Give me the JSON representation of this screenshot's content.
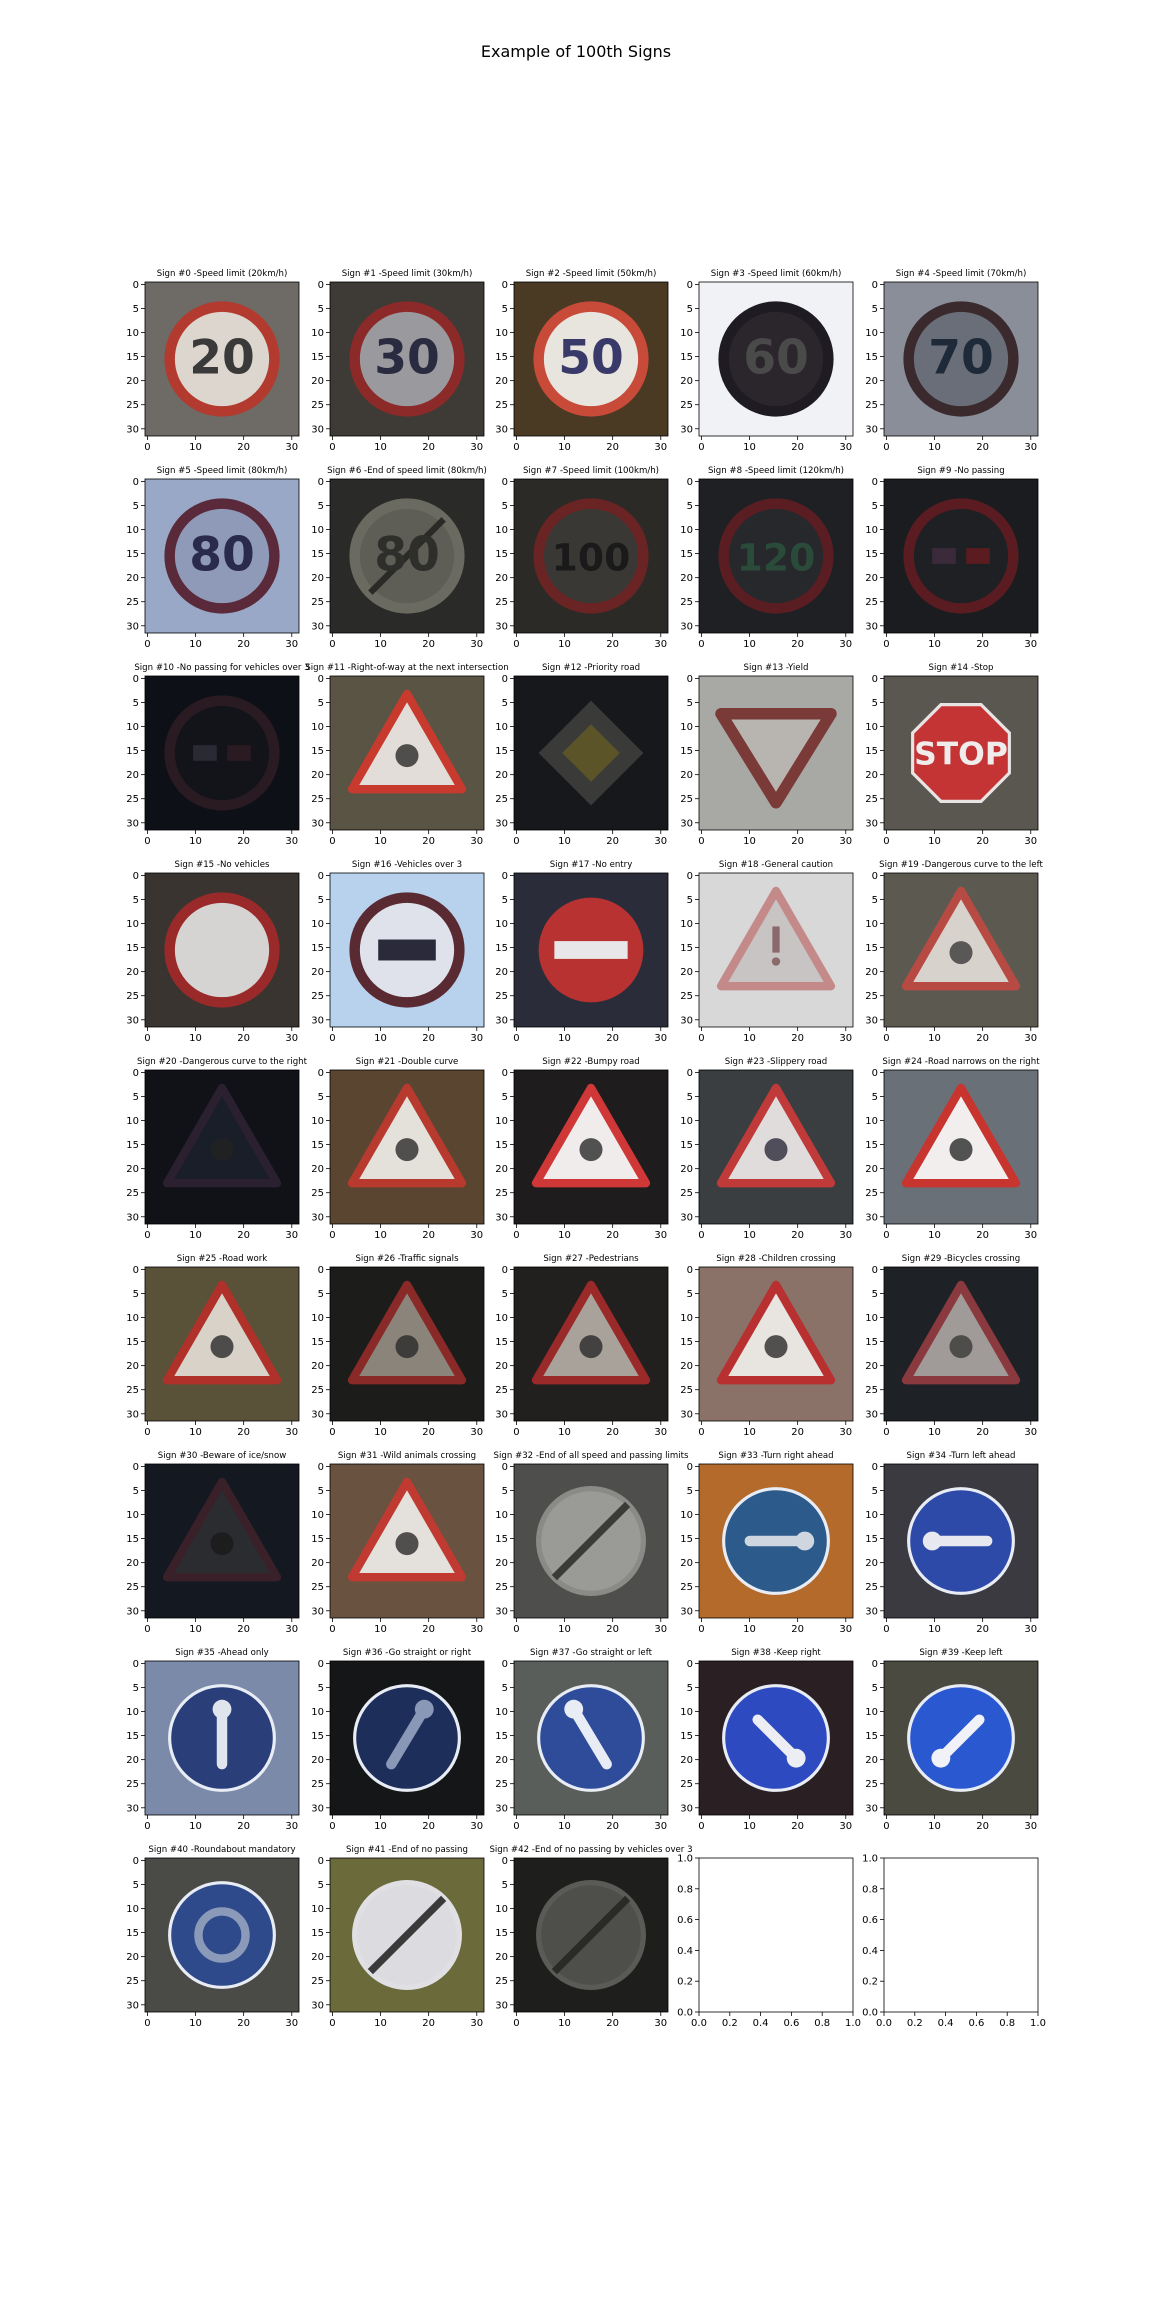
{
  "figure": {
    "suptitle": "Example of 100th Signs"
  },
  "chart_data": {
    "type": "image-grid",
    "grid": {
      "rows": 9,
      "cols": 5
    },
    "axis": {
      "image_xticks": [
        0,
        10,
        20,
        30
      ],
      "image_yticks": [
        0,
        5,
        10,
        15,
        20,
        25,
        30
      ],
      "image_extent": [
        -0.5,
        31.5
      ],
      "empty_ticks": [
        "0.0",
        "0.2",
        "0.4",
        "0.6",
        "0.8",
        "1.0"
      ]
    },
    "panels": [
      {
        "title": "Sign #0 -Speed limit (20km/h)",
        "kind": "speed",
        "label": "20",
        "bg": "#6e6a66",
        "shape": "#b23a2e",
        "inner": "#dcd6cf",
        "symbol": "#3a3a3a",
        "brightness": 1.0
      },
      {
        "title": "Sign #1 -Speed limit (30km/h)",
        "kind": "speed",
        "label": "30",
        "bg": "#3e3a36",
        "shape": "#8c2a2a",
        "inner": "#9a9a9e",
        "symbol": "#2a2a40",
        "brightness": 1.0
      },
      {
        "title": "Sign #2 -Speed limit (50km/h)",
        "kind": "speed",
        "label": "50",
        "bg": "#4a3a24",
        "shape": "#c84a38",
        "inner": "#e8e4de",
        "symbol": "#3a3a6a",
        "brightness": 1.0
      },
      {
        "title": "Sign #3 -Speed limit (60km/h)",
        "kind": "speed",
        "label": "60",
        "bg": "#f0f2f6",
        "shape": "#1e1c22",
        "inner": "#2a262c",
        "symbol": "#4a4a4a",
        "brightness": 1.0
      },
      {
        "title": "Sign #4 -Speed limit (70km/h)",
        "kind": "speed",
        "label": "70",
        "bg": "#8a8e98",
        "shape": "#3a2a2e",
        "inner": "#6a6e78",
        "symbol": "#1e2a3a",
        "brightness": 1.0
      },
      {
        "title": "Sign #5 -Speed limit (80km/h)",
        "kind": "speed",
        "label": "80",
        "bg": "#9aa8c8",
        "shape": "#5a2a3a",
        "inner": "#8e9ab8",
        "symbol": "#2a2a4a",
        "brightness": 1.0
      },
      {
        "title": "Sign #6 -End of speed limit (80km/h)",
        "kind": "endlimit",
        "label": "80",
        "bg": "#2a2a28",
        "shape": "#6a6a60",
        "inner": "#5e5e56",
        "symbol": "#2e2e2a",
        "brightness": 1.0
      },
      {
        "title": "Sign #7 -Speed limit (100km/h)",
        "kind": "speed",
        "label": "100",
        "bg": "#2c2a26",
        "shape": "#6a2424",
        "inner": "#3a3834",
        "symbol": "#1a1a1a",
        "brightness": 1.0
      },
      {
        "title": "Sign #8 -Speed limit (120km/h)",
        "kind": "speed",
        "label": "120",
        "bg": "#1e2024",
        "shape": "#5a1e22",
        "inner": "#26282c",
        "symbol": "#2a4a3a",
        "brightness": 1.0
      },
      {
        "title": "Sign #9 -No passing",
        "kind": "nopass",
        "label": "",
        "bg": "#1a1c20",
        "shape": "#5a1c20",
        "inner": "#1e2024",
        "symbol": "#3a2a3a",
        "brightness": 1.0
      },
      {
        "title": "Sign #10 -No passing for vehicles over 3",
        "kind": "nopass",
        "label": "",
        "bg": "#0e1018",
        "shape": "#2a1a22",
        "inner": "#12141a",
        "symbol": "#2a2a34",
        "brightness": 1.0
      },
      {
        "title": "Sign #11 -Right-of-way at the next intersection",
        "kind": "triangle",
        "label": "",
        "bg": "#5a5444",
        "shape": "#c83a2e",
        "inner": "#e2ddd8",
        "symbol": "#2a2a2a",
        "brightness": 1.0
      },
      {
        "title": "Sign #12 -Priority road",
        "kind": "diamond",
        "label": "",
        "bg": "#16181c",
        "shape": "#3a3a38",
        "inner": "#5a5428",
        "symbol": "#2a2a2a",
        "brightness": 1.0
      },
      {
        "title": "Sign #13 -Yield",
        "kind": "yield",
        "label": "",
        "bg": "#a8a8a4",
        "shape": "#7a3a38",
        "inner": "#b8b4b0",
        "symbol": "#7a3a38",
        "brightness": 1.0
      },
      {
        "title": "Sign #14 -Stop",
        "kind": "stop",
        "label": "STOP",
        "bg": "#5a5650",
        "shape": "#b82a2a",
        "inner": "#c43434",
        "symbol": "#f0ecec",
        "brightness": 1.0
      },
      {
        "title": "Sign #15 -No vehicles",
        "kind": "novehicles",
        "label": "",
        "bg": "#3a3430",
        "shape": "#9a2a2a",
        "inner": "#d6d4d2",
        "symbol": "#d6d4d2",
        "brightness": 1.0
      },
      {
        "title": "Sign #16 -Vehicles over 3",
        "kind": "truck",
        "label": "",
        "bg": "#b8d2ee",
        "shape": "#5a2a32",
        "inner": "#dfe2ea",
        "symbol": "#2a2a3a",
        "brightness": 1.0
      },
      {
        "title": "Sign #17 -No entry",
        "kind": "noentry",
        "label": "",
        "bg": "#2a2c3a",
        "shape": "#b83232",
        "inner": "#b83232",
        "symbol": "#e8e6e8",
        "brightness": 1.0
      },
      {
        "title": "Sign #18 -General caution",
        "kind": "caution",
        "label": "",
        "bg": "#d8d8d8",
        "shape": "#c48a8a",
        "inner": "#c8c4c4",
        "symbol": "#8a6a6a",
        "brightness": 1.0
      },
      {
        "title": "Sign #19 -Dangerous curve to the left",
        "kind": "curve",
        "label": "",
        "bg": "#5c5a50",
        "shape": "#b84a44",
        "inner": "#d8d2cc",
        "symbol": "#3a3a3a",
        "brightness": 1.0
      },
      {
        "title": "Sign #20 -Dangerous curve to the right",
        "kind": "curve",
        "label": "",
        "bg": "#101218",
        "shape": "#2a2030",
        "inner": "#1a1e28",
        "symbol": "#222",
        "brightness": 1.0
      },
      {
        "title": "Sign #21 -Double curve",
        "kind": "doublecurve",
        "label": "",
        "bg": "#5a4630",
        "shape": "#b83a2e",
        "inner": "#e4e0da",
        "symbol": "#2a2a2a",
        "brightness": 1.0
      },
      {
        "title": "Sign #22 -Bumpy road",
        "kind": "bumpy",
        "label": "",
        "bg": "#1e1c1c",
        "shape": "#d03838",
        "inner": "#f0ecec",
        "symbol": "#2a2a2a",
        "brightness": 1.0
      },
      {
        "title": "Sign #23 -Slippery road",
        "kind": "slippery",
        "label": "",
        "bg": "#3a3e40",
        "shape": "#c03a3a",
        "inner": "#e0dcdc",
        "symbol": "#2a2a3a",
        "brightness": 1.0
      },
      {
        "title": "Sign #24 -Road narrows on the right",
        "kind": "narrows",
        "label": "",
        "bg": "#6a7078",
        "shape": "#c8342e",
        "inner": "#f2eeee",
        "symbol": "#2a2a2a",
        "brightness": 1.0
      },
      {
        "title": "Sign #25 -Road work",
        "kind": "roadwork",
        "label": "",
        "bg": "#5a5238",
        "shape": "#b0302a",
        "inner": "#d8d2c8",
        "symbol": "#2a2a2a",
        "brightness": 1.0
      },
      {
        "title": "Sign #26 -Traffic signals",
        "kind": "signals",
        "label": "",
        "bg": "#1c1c1a",
        "shape": "#8a2a28",
        "inner": "#8a847a",
        "symbol": "#2a2a2a",
        "brightness": 1.0
      },
      {
        "title": "Sign #27 -Pedestrians",
        "kind": "pedestrian",
        "label": "",
        "bg": "#22201e",
        "shape": "#9a2a2a",
        "inner": "#a8a29a",
        "symbol": "#2a2a2a",
        "brightness": 1.0
      },
      {
        "title": "Sign #28 -Children crossing",
        "kind": "children",
        "label": "",
        "bg": "#8a7268",
        "shape": "#b83030",
        "inner": "#e8e4e0",
        "symbol": "#2a2a2a",
        "brightness": 1.0
      },
      {
        "title": "Sign #29 -Bicycles crossing",
        "kind": "bicycle",
        "label": "",
        "bg": "#1e2226",
        "shape": "#8a3a3e",
        "inner": "#a09a98",
        "symbol": "#3a3a3a",
        "brightness": 1.0
      },
      {
        "title": "Sign #30 -Beware of ice/snow",
        "kind": "ice",
        "label": "",
        "bg": "#141820",
        "shape": "#3a2028",
        "inner": "#2a2c30",
        "symbol": "#1a1a1a",
        "brightness": 1.0
      },
      {
        "title": "Sign #31 -Wild animals crossing",
        "kind": "animals",
        "label": "",
        "bg": "#6a5240",
        "shape": "#c03a32",
        "inner": "#e4e0dc",
        "symbol": "#2a2a2a",
        "brightness": 1.0
      },
      {
        "title": "Sign #32 -End of all speed and passing limits",
        "kind": "endall",
        "label": "",
        "bg": "#4e4e4c",
        "shape": "#8a8a86",
        "inner": "#9a9a96",
        "symbol": "#3a3a38",
        "brightness": 1.0
      },
      {
        "title": "Sign #33 -Turn right ahead",
        "kind": "turnright",
        "label": "",
        "bg": "#b46a2a",
        "shape": "#2c5a8a",
        "inner": "#2c5a8a",
        "symbol": "#cfd6e0",
        "brightness": 1.0
      },
      {
        "title": "Sign #34 -Turn left ahead",
        "kind": "turnleft",
        "label": "",
        "bg": "#3a3a40",
        "shape": "#2e4aa8",
        "inner": "#2e4aa8",
        "symbol": "#e8e8f0",
        "brightness": 1.0
      },
      {
        "title": "Sign #35 -Ahead only",
        "kind": "ahead",
        "label": "",
        "bg": "#7a8aa8",
        "shape": "#2a3e7a",
        "inner": "#2a3e7a",
        "symbol": "#e0e4ec",
        "brightness": 1.0
      },
      {
        "title": "Sign #36 -Go straight or right",
        "kind": "straightright",
        "label": "",
        "bg": "#141618",
        "shape": "#1e2e5a",
        "inner": "#1e2e5a",
        "symbol": "#8a98b8",
        "brightness": 1.0
      },
      {
        "title": "Sign #37 -Go straight or left",
        "kind": "straightleft",
        "label": "",
        "bg": "#5a5e5a",
        "shape": "#2e4c9a",
        "inner": "#2e4c9a",
        "symbol": "#e8ecf4",
        "brightness": 1.0
      },
      {
        "title": "Sign #38 -Keep right",
        "kind": "keepright",
        "label": "",
        "bg": "#2a2024",
        "shape": "#2e4ac0",
        "inner": "#2e4ac0",
        "symbol": "#eceef4",
        "brightness": 1.0
      },
      {
        "title": "Sign #39 -Keep left",
        "kind": "keepleft",
        "label": "",
        "bg": "#4a4a40",
        "shape": "#2a58d0",
        "inner": "#2a58d0",
        "symbol": "#f0f2f8",
        "brightness": 1.0
      },
      {
        "title": "Sign #40 -Roundabout mandatory",
        "kind": "roundabout",
        "label": "",
        "bg": "#4a4a46",
        "shape": "#2e4a8a",
        "inner": "#2e4a8a",
        "symbol": "#8a9ab8",
        "brightness": 1.0
      },
      {
        "title": "Sign #41 -End of no passing",
        "kind": "endnopass",
        "label": "",
        "bg": "#6a6a3a",
        "shape": "#e0e0e4",
        "inner": "#dcdce0",
        "symbol": "#3a3a3a",
        "brightness": 1.0
      },
      {
        "title": "Sign #42 -End of no passing by vehicles over 3",
        "kind": "endnopass",
        "label": "",
        "bg": "#1e1e1c",
        "shape": "#5a5a56",
        "inner": "#4e4e4a",
        "symbol": "#2a2a28",
        "brightness": 1.0
      },
      {
        "title": "",
        "kind": "empty",
        "label": ""
      },
      {
        "title": "",
        "kind": "empty",
        "label": ""
      }
    ]
  }
}
